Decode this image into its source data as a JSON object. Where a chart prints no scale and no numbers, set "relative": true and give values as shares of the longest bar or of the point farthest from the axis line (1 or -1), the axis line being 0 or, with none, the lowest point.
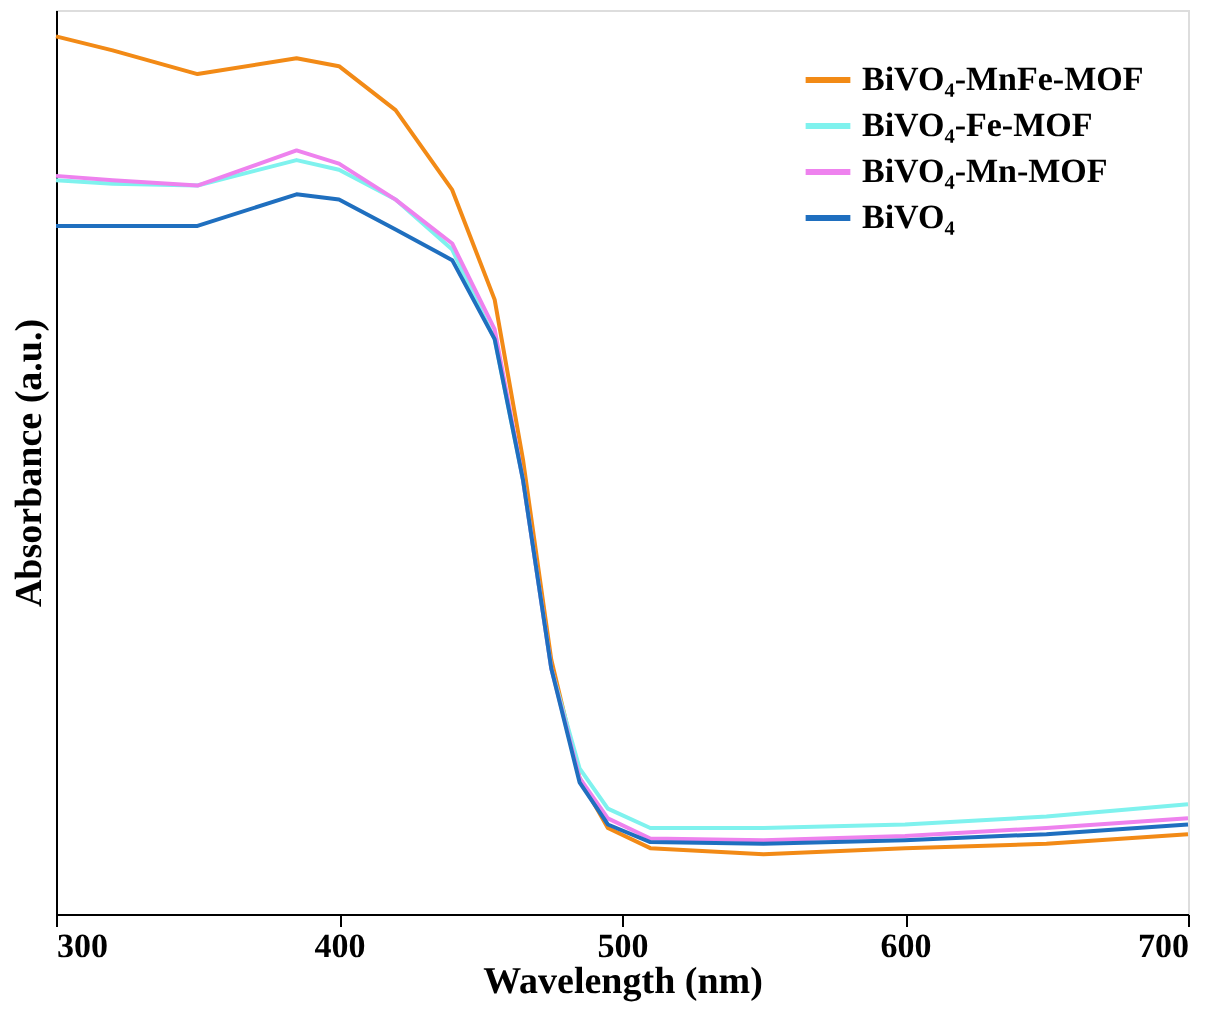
{
  "chart_data": {
    "type": "line",
    "xlabel": "Wavelength (nm)",
    "ylabel": "Absorbance (a.u.)",
    "relative": true,
    "xlim": [
      300,
      700
    ],
    "xticks": [
      300,
      400,
      500,
      600,
      700
    ],
    "tick_labels": "x",
    "grid": false,
    "legend": "top right",
    "line_style": "solid",
    "marker": "none",
    "x": [
      300,
      320,
      350,
      385,
      400,
      420,
      440,
      455,
      465,
      475,
      485,
      495,
      510,
      550,
      600,
      650,
      700
    ],
    "series": [
      {
        "name": "BiVO₄-MnFe-MOF",
        "color": "#f28a16",
        "values": [
          1.0,
          0.984,
          0.957,
          0.975,
          0.966,
          0.916,
          0.825,
          0.7,
          0.518,
          0.29,
          0.155,
          0.098,
          0.075,
          0.068,
          0.075,
          0.08,
          0.091
        ]
      },
      {
        "name": "BiVO₄-Fe-MOF",
        "color": "#7ff2ee",
        "values": [
          0.836,
          0.832,
          0.83,
          0.859,
          0.848,
          0.814,
          0.757,
          0.655,
          0.495,
          0.28,
          0.166,
          0.12,
          0.098,
          0.098,
          0.102,
          0.111,
          0.125
        ]
      },
      {
        "name": "BiVO₄-Mn-MOF",
        "color": "#ee82ee",
        "values": [
          0.841,
          0.836,
          0.83,
          0.87,
          0.855,
          0.814,
          0.764,
          0.666,
          0.495,
          0.28,
          0.155,
          0.109,
          0.086,
          0.084,
          0.089,
          0.098,
          0.109
        ]
      },
      {
        "name": "BiVO₄",
        "color": "#1f6fbf",
        "values": [
          0.784,
          0.784,
          0.784,
          0.82,
          0.814,
          0.78,
          0.745,
          0.655,
          0.495,
          0.28,
          0.15,
          0.102,
          0.082,
          0.08,
          0.084,
          0.091,
          0.102
        ]
      }
    ]
  }
}
